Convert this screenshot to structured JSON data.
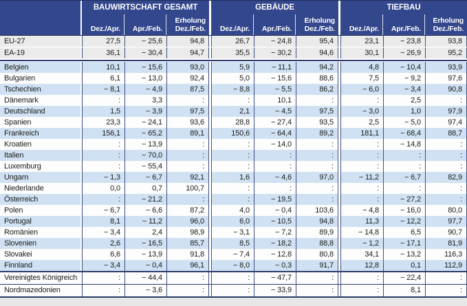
{
  "colors": {
    "header_bg": "#33478c",
    "header_line": "#22305f",
    "grid_line": "#3d4c82",
    "section_line": "#2c3a6b",
    "row_blue": "#cfe1f2",
    "row_white": "#fdfdfd",
    "row_gray": "#ebebeb",
    "page_bg": "#e7e7e7",
    "text": "#1a1a1a"
  },
  "header": {
    "groups": [
      {
        "title": "BAUWIRTSCHAFT GESAMT",
        "cols": [
          {
            "label": "Dez./Apr."
          },
          {
            "label": "Apr./Feb."
          },
          {
            "top": "Erholung",
            "label": "Dez./Feb."
          }
        ]
      },
      {
        "title": "GEBÄUDE",
        "cols": [
          {
            "label": "Dez./Apr."
          },
          {
            "label": "Apr./Feb."
          },
          {
            "top": "Erholung",
            "label": "Dez./Feb."
          }
        ]
      },
      {
        "title": "TIEFBAU",
        "cols": [
          {
            "label": "Dez./Apr."
          },
          {
            "label": "Apr./Feb."
          },
          {
            "top": "Erholung",
            "label": "Dez./Feb."
          }
        ]
      }
    ]
  },
  "sections": [
    {
      "id": "aggregates",
      "rows": [
        {
          "label": "EU-27",
          "values": [
            "27,5",
            "− 25,6",
            "94,8",
            "26,7",
            "− 24,8",
            "95,4",
            "23,1",
            "− 23,8",
            "93,8"
          ]
        },
        {
          "label": "EA-19",
          "values": [
            "36,1",
            "− 30,4",
            "94,7",
            "35,5",
            "− 30,2",
            "94,6",
            "30,1",
            "− 26,9",
            "95,2"
          ]
        }
      ]
    },
    {
      "id": "countries",
      "rows": [
        {
          "label": "Belgien",
          "values": [
            "10,1",
            "− 15,6",
            "93,0",
            "5,9",
            "− 11,1",
            "94,2",
            "4,8",
            "− 10,4",
            "93,9"
          ]
        },
        {
          "label": "Bulgarien",
          "values": [
            "6,1",
            "− 13,0",
            "92,4",
            "5,0",
            "− 15,6",
            "88,6",
            "7,5",
            "− 9,2",
            "97,6"
          ]
        },
        {
          "label": "Tschechien",
          "values": [
            "− 8,1",
            "− 4,9",
            "87,5",
            "− 8,8",
            "− 5,5",
            "86,2",
            "− 6,0",
            "− 3,4",
            "90,8"
          ]
        },
        {
          "label": "Dänemark",
          "values": [
            ":",
            "3,3",
            ":",
            ":",
            "10,1",
            ":",
            ":",
            "2,5",
            ":"
          ]
        },
        {
          "label": "Deutschland",
          "values": [
            "1,5",
            "− 3,9",
            "97,5",
            "2,1",
            "− 4,5",
            "97,5",
            "− 3,0",
            "1,0",
            "97,9"
          ]
        },
        {
          "label": "Spanien",
          "values": [
            "23,3",
            "− 24,1",
            "93,6",
            "28,8",
            "− 27,4",
            "93,5",
            "2,5",
            "− 5,0",
            "97,4"
          ]
        },
        {
          "label": "Frankreich",
          "values": [
            "156,1",
            "− 65,2",
            "89,1",
            "150,6",
            "− 64,4",
            "89,2",
            "181,1",
            "− 68,4",
            "88,7"
          ]
        },
        {
          "label": "Kroatien",
          "values": [
            ":",
            "− 13,9",
            ":",
            ":",
            "− 14,0",
            ":",
            ":",
            "− 14,8",
            ":"
          ]
        },
        {
          "label": "Italien",
          "values": [
            ":",
            "− 70,0",
            ":",
            ":",
            ":",
            ":",
            ":",
            ":",
            ":"
          ]
        },
        {
          "label": "Luxemburg",
          "values": [
            ":",
            "− 55,4",
            ":",
            ":",
            ":",
            ":",
            ":",
            ":",
            ":"
          ]
        },
        {
          "label": "Ungarn",
          "values": [
            "− 1,3",
            "− 6,7",
            "92,1",
            "1,6",
            "− 4,6",
            "97,0",
            "− 11,2",
            "− 6,7",
            "82,9"
          ]
        },
        {
          "label": "Niederlande",
          "values": [
            "0,0",
            "0,7",
            "100,7",
            ":",
            ":",
            ":",
            ":",
            ":",
            ":"
          ]
        },
        {
          "label": "Österreich",
          "values": [
            ":",
            "− 21,2",
            ":",
            ":",
            "− 19,5",
            ":",
            ":",
            "− 27,2",
            ":"
          ]
        },
        {
          "label": "Polen",
          "values": [
            "− 6,7",
            "− 6,6",
            "87,2",
            "4,0",
            "− 0,4",
            "103,6",
            "− 4,8",
            "− 16,0",
            "80,0"
          ]
        },
        {
          "label": "Portugal",
          "values": [
            "8,1",
            "− 11,2",
            "96,0",
            "6,0",
            "− 10,5",
            "94,8",
            "11,3",
            "− 12,2",
            "97,7"
          ]
        },
        {
          "label": "Romänien",
          "values": [
            "− 3,4",
            "2,4",
            "98,9",
            "− 3,1",
            "− 7,2",
            "89,9",
            "− 14,8",
            "6,5",
            "90,7"
          ]
        },
        {
          "label": "Slovenien",
          "values": [
            "2,6",
            "− 16,5",
            "85,7",
            "8,5",
            "− 18,2",
            "88,8",
            "− 1,2",
            "− 17,1",
            "81,9"
          ]
        },
        {
          "label": "Slovakei",
          "values": [
            "6,6",
            "− 13,9",
            "91,8",
            "− 7,4",
            "− 12,8",
            "80,8",
            "34,1",
            "− 13,2",
            "116,3"
          ]
        },
        {
          "label": "Finnland",
          "values": [
            "− 3,4",
            "− 0,4",
            "96,1",
            "− 8,0",
            "− 0,3",
            "91,7",
            "12,8",
            "0,1",
            "112,9"
          ]
        }
      ]
    },
    {
      "id": "uk",
      "rows": [
        {
          "label": "Vereinigtes Königreich",
          "values": [
            ":",
            "− 44,4",
            ":",
            ":",
            "− 47,7",
            ":",
            ":",
            "− 22,4",
            ":"
          ]
        }
      ]
    },
    {
      "id": "north-macedonia",
      "rows": [
        {
          "label": "Nordmazedonien",
          "values": [
            ":",
            "− 3,6",
            ":",
            ":",
            "− 33,9",
            ":",
            ":",
            "8,1",
            ":"
          ]
        }
      ]
    }
  ]
}
